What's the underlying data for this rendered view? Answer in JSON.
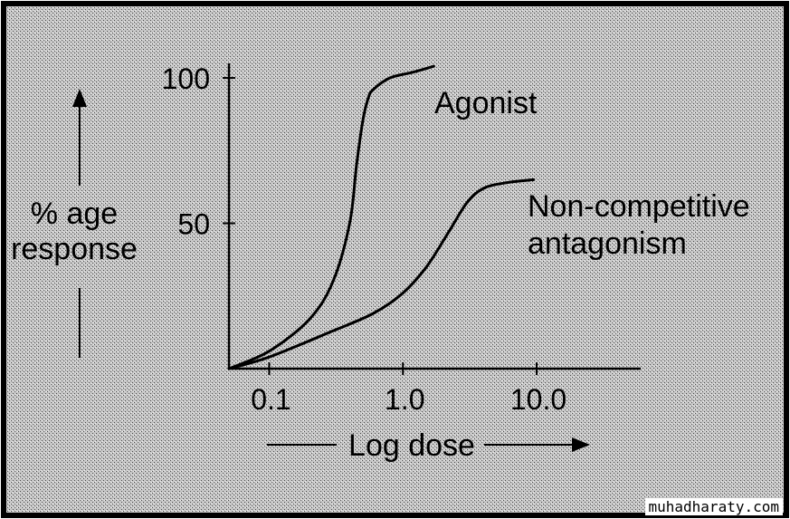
{
  "chart_data": {
    "type": "line",
    "xlabel": "Log dose",
    "ylabel_line1": "% age",
    "ylabel_line2": "response",
    "x_scale": "log",
    "xlim": [
      0.05,
      60
    ],
    "ylim": [
      0,
      105
    ],
    "x_ticks": [
      0.1,
      1.0,
      10.0
    ],
    "x_tick_labels": [
      "0.1",
      "1.0",
      "10.0"
    ],
    "y_ticks": [
      50,
      100
    ],
    "y_tick_labels": [
      "50",
      "100"
    ],
    "grid": false,
    "series": [
      {
        "name": "Agonist",
        "color": "#000000",
        "x": [
          0.05,
          0.1,
          0.2,
          0.3,
          0.4,
          0.45,
          0.5,
          0.55,
          0.6,
          0.8,
          1.2,
          1.7
        ],
        "y": [
          0,
          6,
          17,
          30,
          50,
          70,
          85,
          93,
          96,
          100,
          102,
          104
        ]
      },
      {
        "name_line1": "Non-competitive",
        "name_line2": "antagonism",
        "color": "#000000",
        "x": [
          0.05,
          0.1,
          0.3,
          0.6,
          1.0,
          1.5,
          2.2,
          3.0,
          4.0,
          6.0,
          9.5
        ],
        "y": [
          0,
          4,
          13,
          19,
          26,
          35,
          47,
          57,
          62,
          64,
          65
        ]
      }
    ]
  },
  "watermark": "muhadharaty.com"
}
